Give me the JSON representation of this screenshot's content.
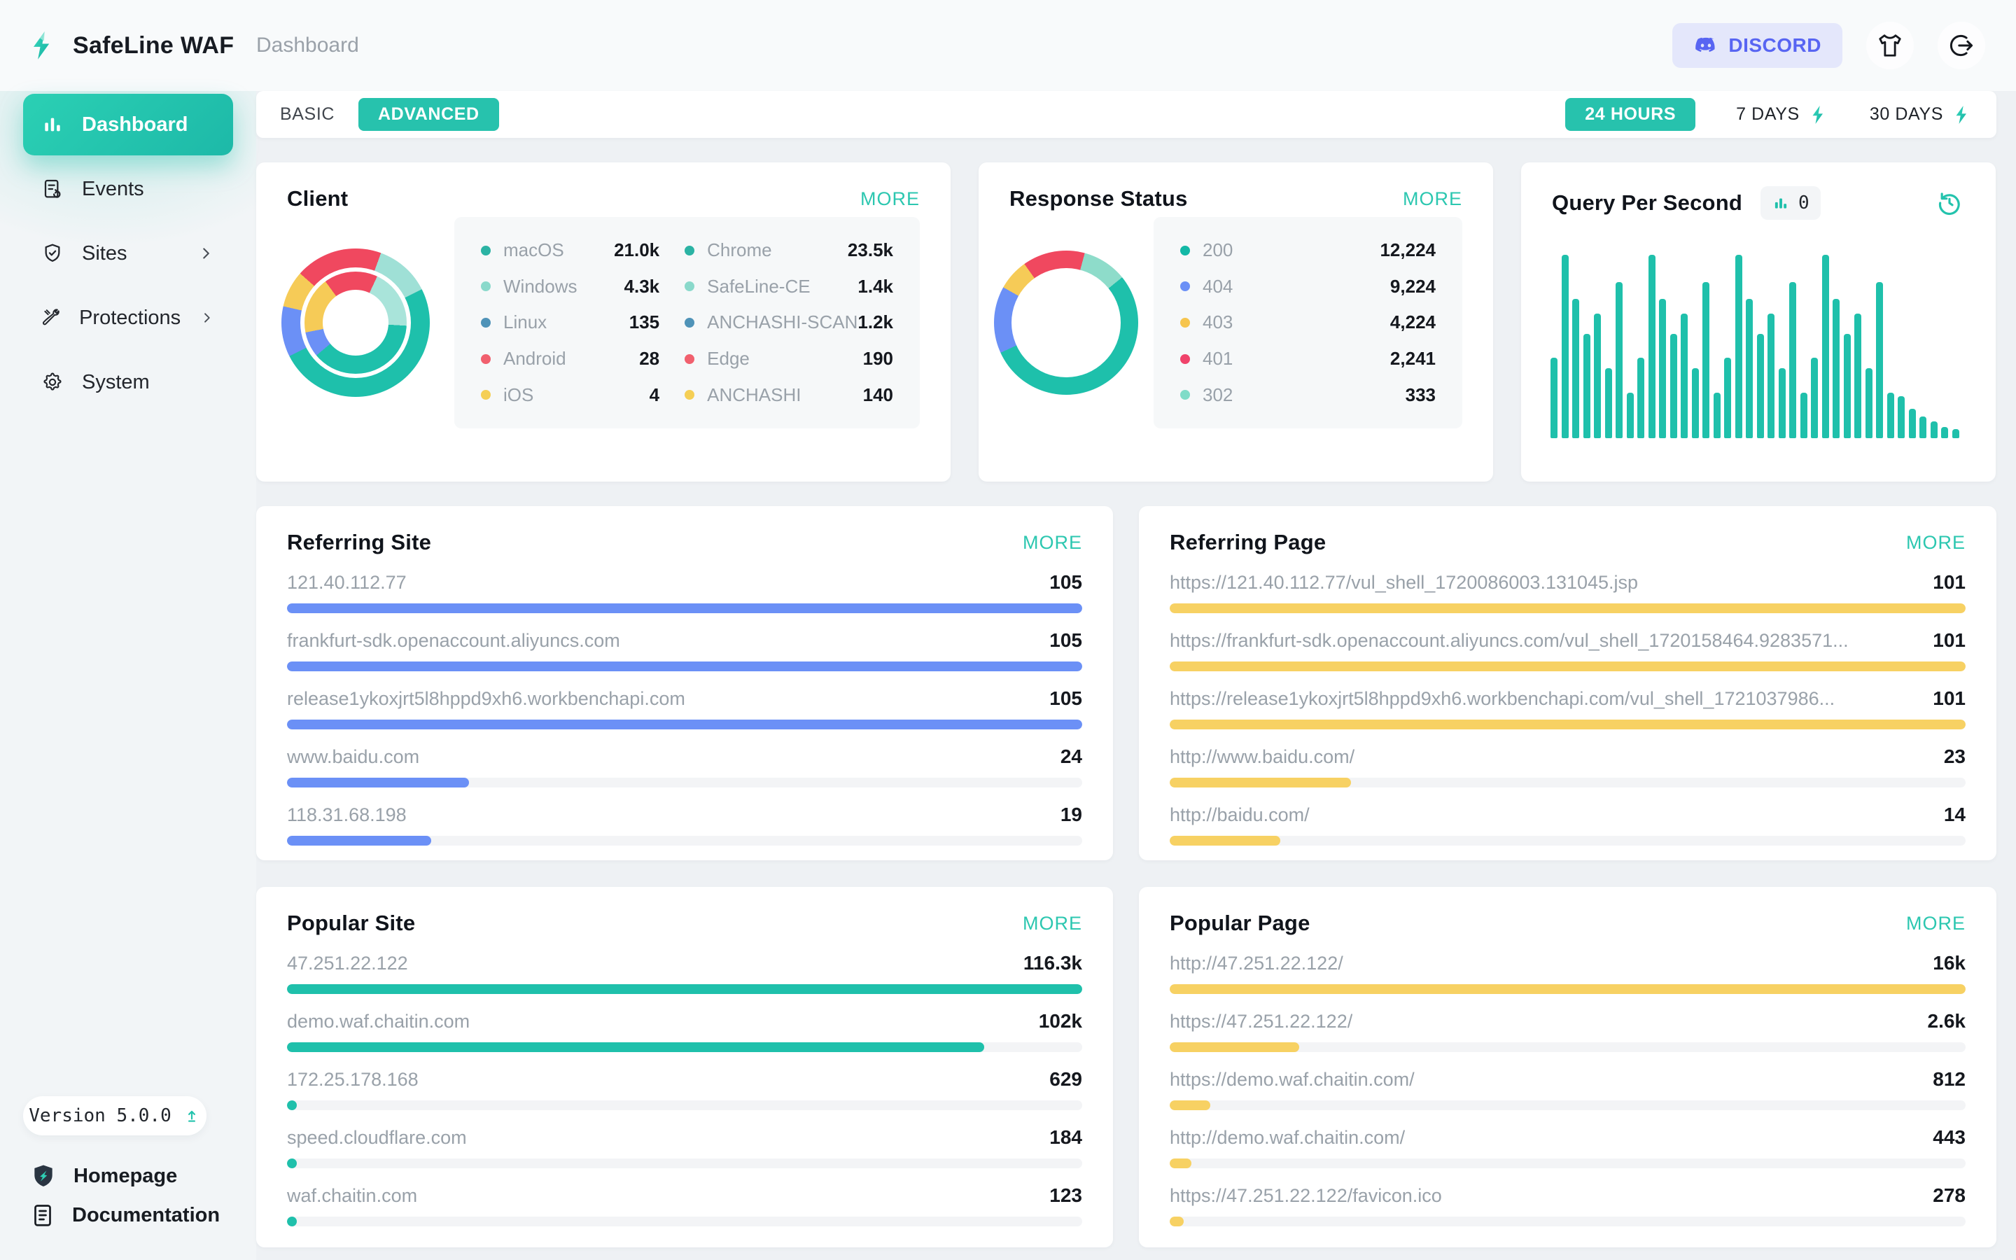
{
  "accent": "#23c3ad",
  "header": {
    "brand": "SafeLine WAF",
    "breadcrumb": "Dashboard",
    "discord": "DISCORD",
    "discord_color": "#5865f2"
  },
  "sidebar": {
    "items": [
      {
        "label": "Dashboard",
        "active": true
      },
      {
        "label": "Events",
        "active": false
      },
      {
        "label": "Sites",
        "active": false,
        "chevron": true
      },
      {
        "label": "Protections",
        "active": false,
        "chevron": true
      },
      {
        "label": "System",
        "active": false
      }
    ],
    "version": "Version 5.0.0",
    "homepage": "Homepage",
    "documentation": "Documentation"
  },
  "toolbar": {
    "basic": "BASIC",
    "advanced": "ADVANCED",
    "ranges": [
      {
        "label": "24 HOURS",
        "active": true,
        "bolt": false
      },
      {
        "label": "7 DAYS",
        "active": false,
        "bolt": true
      },
      {
        "label": "30 DAYS",
        "active": false,
        "bolt": true
      }
    ]
  },
  "cards": {
    "client": {
      "title": "Client",
      "more": "MORE",
      "legend_left": [
        {
          "label": "macOS",
          "value": "21.0k",
          "color": "#2bb3a4"
        },
        {
          "label": "Windows",
          "value": "4.3k",
          "color": "#8ad9cb"
        },
        {
          "label": "Linux",
          "value": "135",
          "color": "#4f93b8"
        },
        {
          "label": "Android",
          "value": "28",
          "color": "#f1606e"
        },
        {
          "label": "iOS",
          "value": "4",
          "color": "#f5cf55"
        }
      ],
      "legend_right": [
        {
          "label": "Chrome",
          "value": "23.5k",
          "color": "#2bb3a4"
        },
        {
          "label": "SafeLine-CE",
          "value": "1.4k",
          "color": "#8ad9cb"
        },
        {
          "label": "ANCHASHI-SCAN",
          "value": "1.2k",
          "color": "#4f93b8"
        },
        {
          "label": "Edge",
          "value": "190",
          "color": "#f1606e"
        },
        {
          "label": "ANCHASHI",
          "value": "140",
          "color": "#f5cf55"
        }
      ],
      "outer_ring": [
        {
          "color": "#9fe0d6",
          "pct": 12
        },
        {
          "color": "#1ec0ab",
          "pct": 50
        },
        {
          "color": "#6b90f6",
          "pct": 11
        },
        {
          "color": "#f6cb57",
          "pct": 8
        },
        {
          "color": "#f0485f",
          "pct": 19
        }
      ],
      "outer_start": 20,
      "inner_ring": [
        {
          "color": "#a9e4da",
          "pct": 19
        },
        {
          "color": "#1ec0ab",
          "pct": 38
        },
        {
          "color": "#6b90f6",
          "pct": 8
        },
        {
          "color": "#f6cb57",
          "pct": 18
        },
        {
          "color": "#f0485f",
          "pct": 17
        }
      ],
      "inner_start": 25
    },
    "response": {
      "title": "Response Status",
      "more": "MORE",
      "legend": [
        {
          "label": "200",
          "value": "12,224",
          "color": "#13b8a6"
        },
        {
          "label": "404",
          "value": "9,224",
          "color": "#6b90f6"
        },
        {
          "label": "403",
          "value": "4,224",
          "color": "#f6c54e"
        },
        {
          "label": "401",
          "value": "2,241",
          "color": "#f0436b"
        },
        {
          "label": "302",
          "value": "333",
          "color": "#7fdcc8"
        }
      ],
      "ring": [
        {
          "color": "#8edcca",
          "pct": 10
        },
        {
          "color": "#1ec0ab",
          "pct": 54
        },
        {
          "color": "#6b90f6",
          "pct": 15
        },
        {
          "color": "#f6cb57",
          "pct": 7
        },
        {
          "color": "#f0485f",
          "pct": 14
        }
      ],
      "ring_start": 15
    },
    "qps": {
      "title": "Query Per Second",
      "current": "0",
      "bar_color": "#1fc0ab",
      "bars": [
        44,
        100,
        76,
        57,
        68,
        38,
        85,
        25,
        44,
        100,
        76,
        57,
        68,
        38,
        85,
        25,
        44,
        100,
        76,
        57,
        68,
        38,
        85,
        25,
        44,
        100,
        76,
        57,
        68,
        38,
        85,
        25,
        23,
        16,
        12,
        9,
        6,
        5
      ]
    },
    "referring_site": {
      "title": "Referring Site",
      "more": "MORE",
      "bar_color": "#6b90f6",
      "rows": [
        {
          "label": "121.40.112.77",
          "value": "105",
          "num": 105
        },
        {
          "label": "frankfurt-sdk.openaccount.aliyuncs.com",
          "value": "105",
          "num": 105
        },
        {
          "label": "release1ykoxjrt5l8hppd9xh6.workbenchapi.com",
          "value": "105",
          "num": 105
        },
        {
          "label": "www.baidu.com",
          "value": "24",
          "num": 24
        },
        {
          "label": "118.31.68.198",
          "value": "19",
          "num": 19
        }
      ]
    },
    "referring_page": {
      "title": "Referring Page",
      "more": "MORE",
      "bar_color": "#f7d163",
      "rows": [
        {
          "label": "https://121.40.112.77/vul_shell_1720086003.131045.jsp",
          "value": "101",
          "num": 101
        },
        {
          "label": "https://frankfurt-sdk.openaccount.aliyuncs.com/vul_shell_1720158464.9283571...",
          "value": "101",
          "num": 101
        },
        {
          "label": "https://release1ykoxjrt5l8hppd9xh6.workbenchapi.com/vul_shell_1721037986...",
          "value": "101",
          "num": 101
        },
        {
          "label": "http://www.baidu.com/",
          "value": "23",
          "num": 23
        },
        {
          "label": "http://baidu.com/",
          "value": "14",
          "num": 14
        }
      ]
    },
    "popular_site": {
      "title": "Popular Site",
      "more": "MORE",
      "bar_color": "#1fc0ab",
      "rows": [
        {
          "label": "47.251.22.122",
          "value": "116.3k",
          "num": 116300
        },
        {
          "label": "demo.waf.chaitin.com",
          "value": "102k",
          "num": 102000
        },
        {
          "label": "172.25.178.168",
          "value": "629",
          "num": 629
        },
        {
          "label": "speed.cloudflare.com",
          "value": "184",
          "num": 184
        },
        {
          "label": "waf.chaitin.com",
          "value": "123",
          "num": 123
        }
      ]
    },
    "popular_page": {
      "title": "Popular Page",
      "more": "MORE",
      "bar_color": "#f7d163",
      "rows": [
        {
          "label": "http://47.251.22.122/",
          "value": "16k",
          "num": 16000
        },
        {
          "label": "https://47.251.22.122/",
          "value": "2.6k",
          "num": 2600
        },
        {
          "label": "https://demo.waf.chaitin.com/",
          "value": "812",
          "num": 812
        },
        {
          "label": "http://demo.waf.chaitin.com/",
          "value": "443",
          "num": 443
        },
        {
          "label": "https://47.251.22.122/favicon.ico",
          "value": "278",
          "num": 278
        }
      ]
    }
  },
  "chart_data": [
    {
      "type": "pie",
      "variant": "double-donut",
      "title": "Client",
      "legend_position": "right",
      "rings": [
        {
          "name": "browsers",
          "categories": [
            "Chrome",
            "SafeLine-CE",
            "ANCHASHI-SCAN",
            "Edge",
            "ANCHASHI"
          ],
          "values": [
            23500,
            1400,
            1200,
            190,
            140
          ]
        },
        {
          "name": "os",
          "categories": [
            "macOS",
            "Windows",
            "Linux",
            "Android",
            "iOS"
          ],
          "values": [
            21000,
            4300,
            135,
            28,
            4
          ]
        }
      ]
    },
    {
      "type": "pie",
      "variant": "donut",
      "title": "Response Status",
      "legend_position": "right",
      "categories": [
        "200",
        "404",
        "403",
        "401",
        "302"
      ],
      "values": [
        12224,
        9224,
        4224,
        2241,
        333
      ]
    },
    {
      "type": "bar",
      "title": "Query Per Second",
      "current_qps": 0,
      "grid": false,
      "ylim": [
        0,
        100
      ],
      "values": [
        44,
        100,
        76,
        57,
        68,
        38,
        85,
        25,
        44,
        100,
        76,
        57,
        68,
        38,
        85,
        25,
        44,
        100,
        76,
        57,
        68,
        38,
        85,
        25,
        44,
        100,
        76,
        57,
        68,
        38,
        85,
        25,
        23,
        16,
        12,
        9,
        6,
        5
      ]
    },
    {
      "type": "bar",
      "variant": "horizontal",
      "title": "Referring Site",
      "categories": [
        "121.40.112.77",
        "frankfurt-sdk.openaccount.aliyuncs.com",
        "release1ykoxjrt5l8hppd9xh6.workbenchapi.com",
        "www.baidu.com",
        "118.31.68.198"
      ],
      "values": [
        105,
        105,
        105,
        24,
        19
      ]
    },
    {
      "type": "bar",
      "variant": "horizontal",
      "title": "Referring Page",
      "categories": [
        "https://121.40.112.77/vul_shell_1720086003.131045.jsp",
        "https://frankfurt-sdk.openaccount.aliyuncs.com/vul_shell_1720158464.9283571...",
        "https://release1ykoxjrt5l8hppd9xh6.workbenchapi.com/vul_shell_1721037986...",
        "http://www.baidu.com/",
        "http://baidu.com/"
      ],
      "values": [
        101,
        101,
        101,
        23,
        14
      ]
    },
    {
      "type": "bar",
      "variant": "horizontal",
      "title": "Popular Site",
      "categories": [
        "47.251.22.122",
        "demo.waf.chaitin.com",
        "172.25.178.168",
        "speed.cloudflare.com",
        "waf.chaitin.com"
      ],
      "values": [
        116300,
        102000,
        629,
        184,
        123
      ]
    },
    {
      "type": "bar",
      "variant": "horizontal",
      "title": "Popular Page",
      "categories": [
        "http://47.251.22.122/",
        "https://47.251.22.122/",
        "https://demo.waf.chaitin.com/",
        "http://demo.waf.chaitin.com/",
        "https://47.251.22.122/favicon.ico"
      ],
      "values": [
        16000,
        2600,
        812,
        443,
        278
      ]
    }
  ]
}
